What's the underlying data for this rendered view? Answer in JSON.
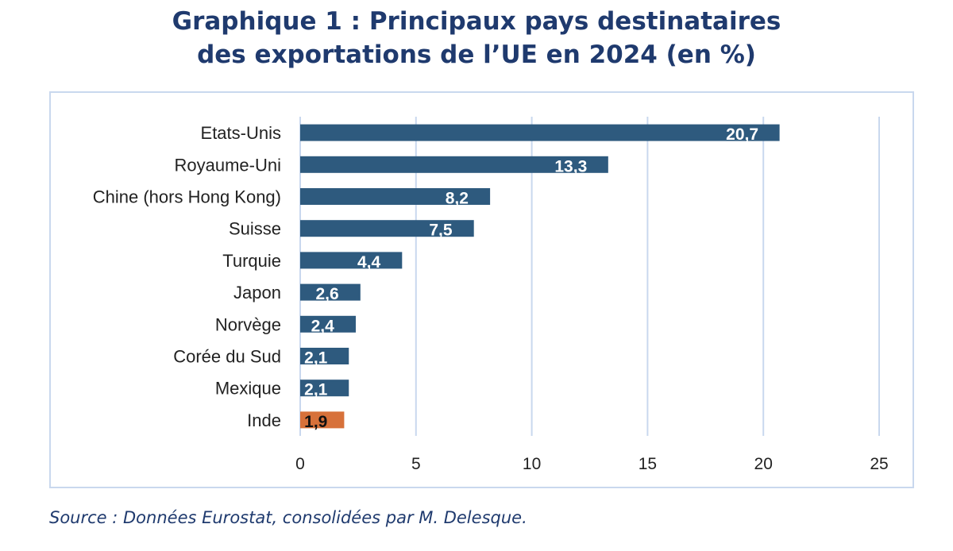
{
  "title_lines": [
    "Graphique 1 : Principaux pays destinataires",
    "des exportations de l’UE en 2024 (en %)"
  ],
  "source": "Source : Données Eurostat, consolidées par M. Delesque.",
  "chart_data": {
    "type": "bar",
    "orientation": "horizontal",
    "title": "Graphique 1 : Principaux pays destinataires des exportations de l’UE en 2024 (en %)",
    "categories": [
      "Etats-Unis",
      "Royaume-Uni",
      "Chine (hors Hong Kong)",
      "Suisse",
      "Turquie",
      "Japon",
      "Norvège",
      "Corée du Sud",
      "Mexique",
      "Inde"
    ],
    "values": [
      20.7,
      13.3,
      8.2,
      7.5,
      4.4,
      2.6,
      2.4,
      2.1,
      2.1,
      1.9
    ],
    "value_labels": [
      "20,7",
      "13,3",
      "8,2",
      "7,5",
      "4,4",
      "2,6",
      "2,4",
      "2,1",
      "2,1",
      "1,9"
    ],
    "highlight_category": "Inde",
    "xlim": [
      0,
      25
    ],
    "xticks": [
      0,
      5,
      10,
      15,
      20,
      25
    ],
    "xlabel": "",
    "ylabel": "",
    "grid": "vertical",
    "colors": {
      "bar": "#2e5a7e",
      "highlight": "#d7713a",
      "grid": "#c9d8ee",
      "label": "#ffffff",
      "highlight_label": "#111111"
    }
  }
}
